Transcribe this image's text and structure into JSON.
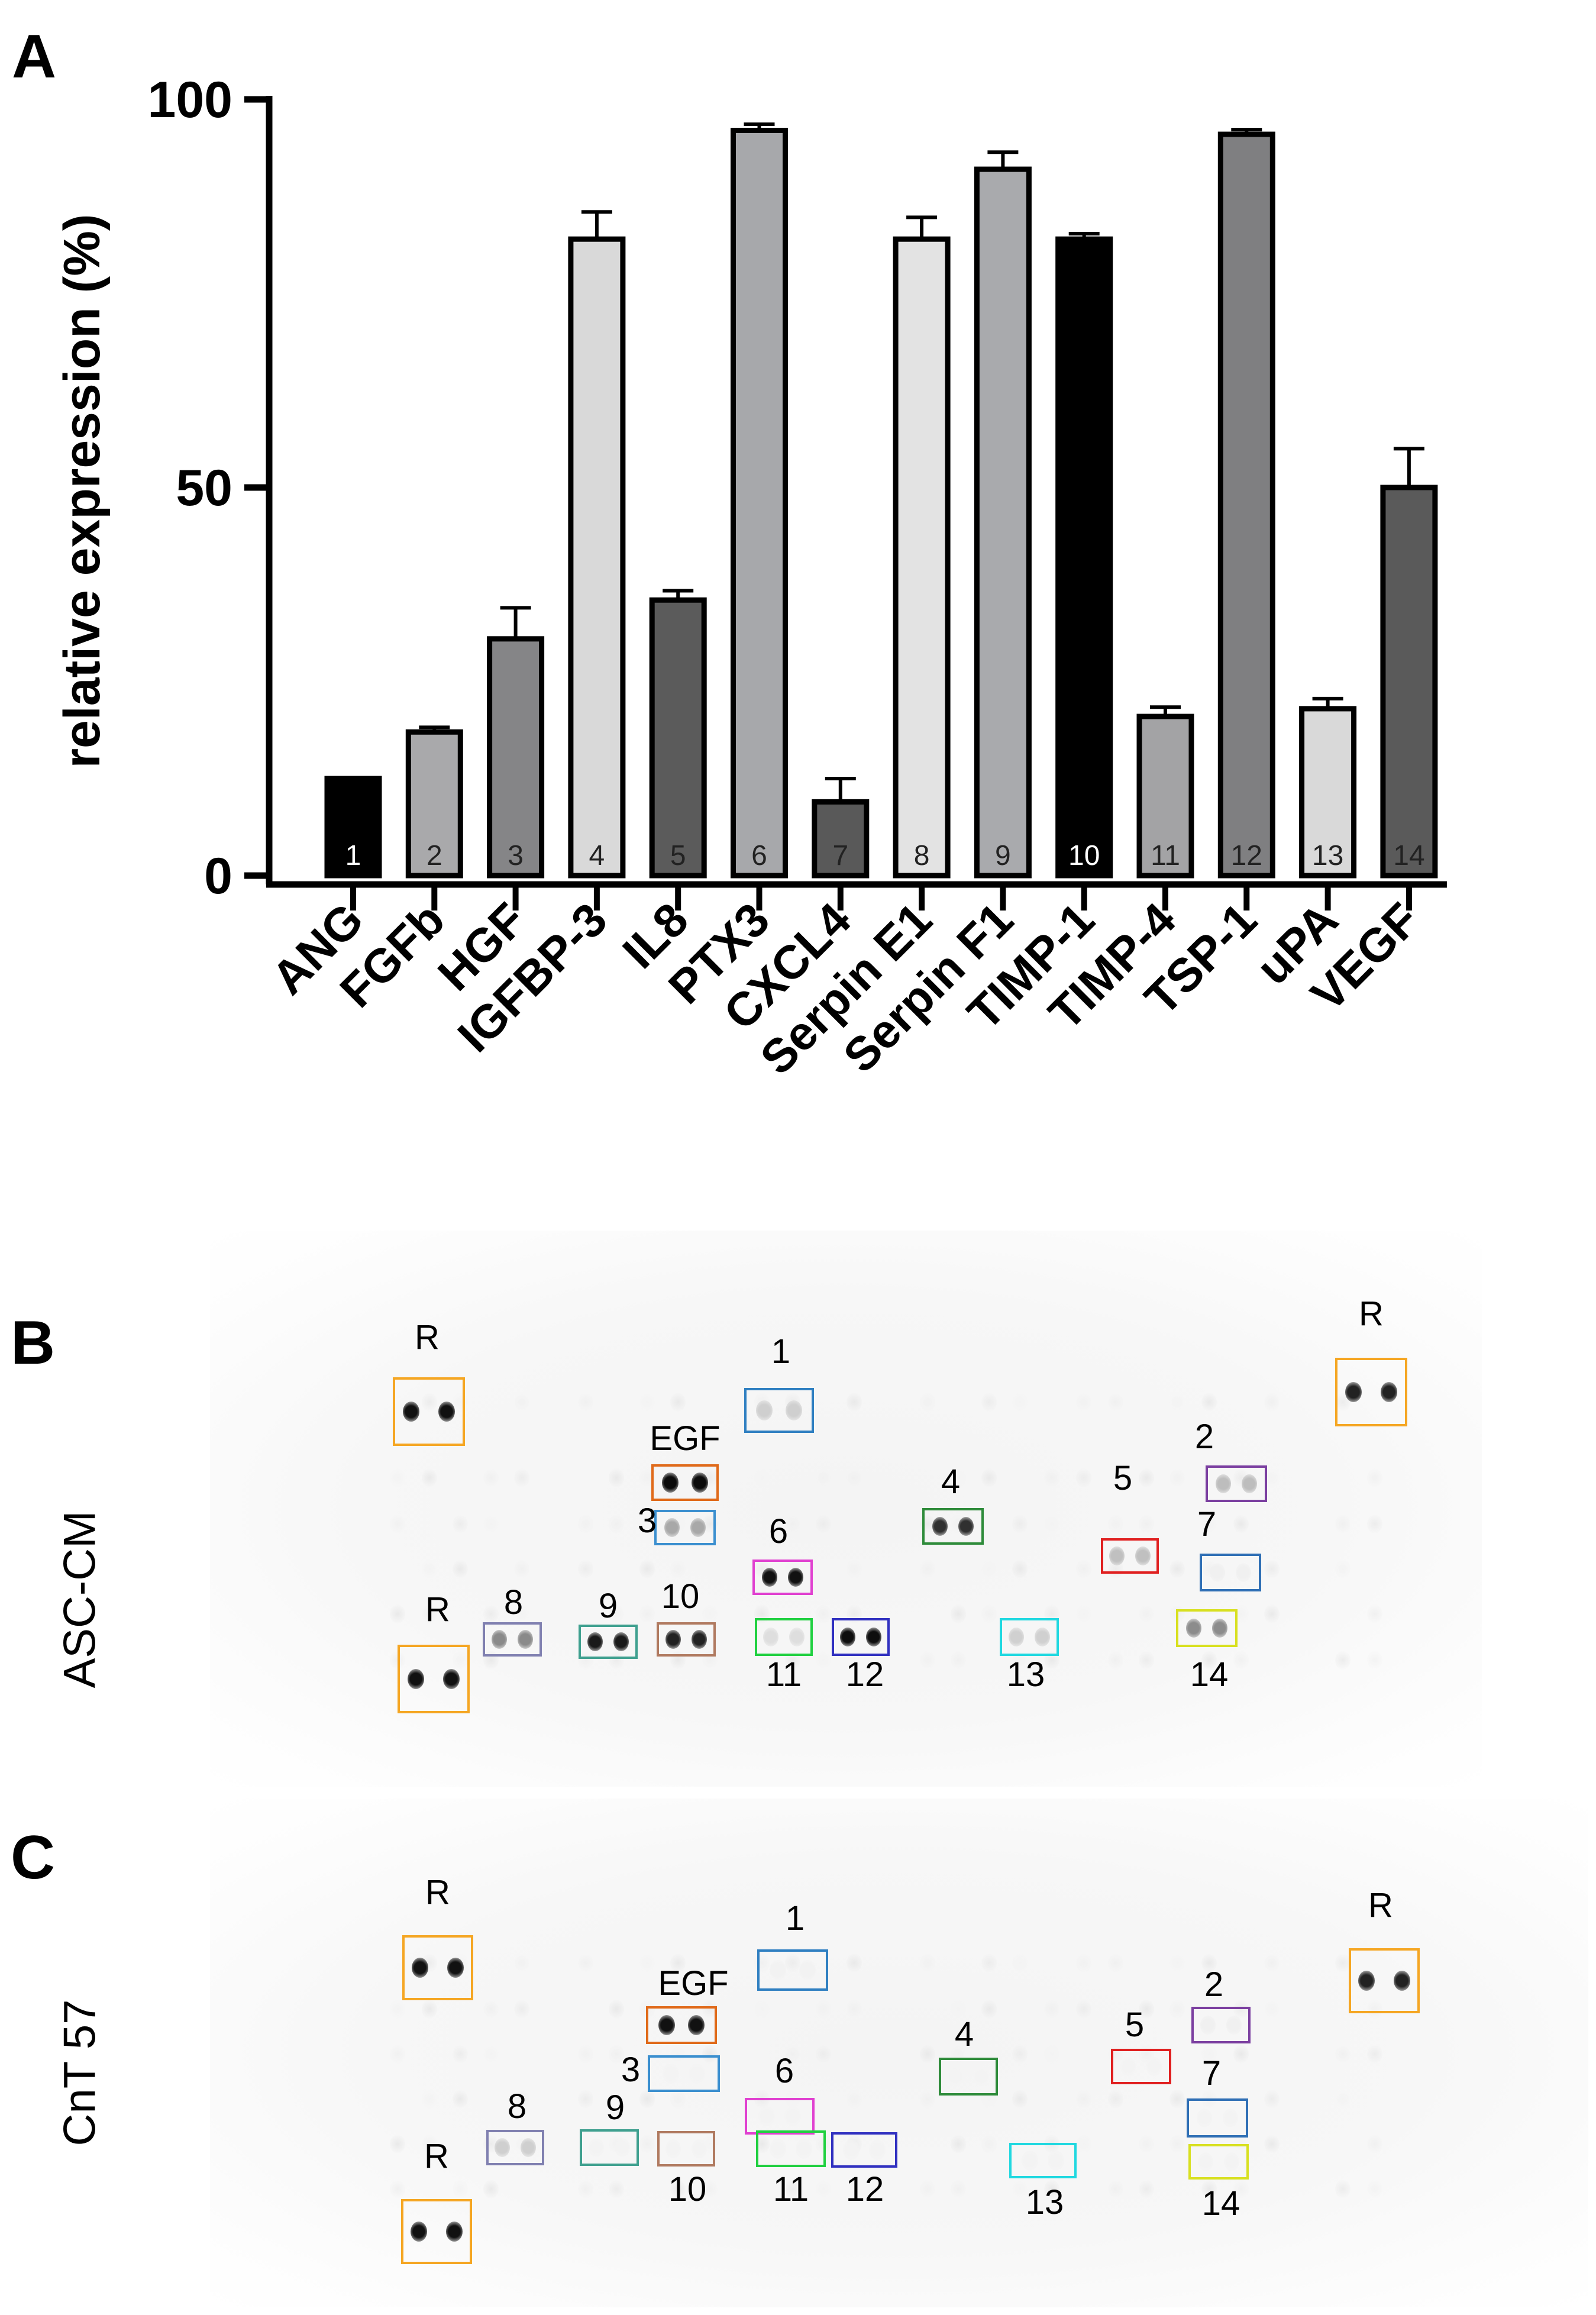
{
  "figure": {
    "panel_letters": {
      "A": "A",
      "B": "B",
      "C": "C"
    }
  },
  "chart_data": {
    "type": "bar",
    "title": "",
    "xlabel": "",
    "ylabel": "relative expression (%)",
    "ylim": [
      0,
      100
    ],
    "yticks": [
      0,
      50,
      100
    ],
    "categories": [
      "ANG",
      "FGFb",
      "HGF",
      "IGFBP-3",
      "IL8",
      "PTX3",
      "CXCL4",
      "Serpin E1",
      "Serpin F1",
      "TIMP-1",
      "TIMP-4",
      "TSP-1",
      "uPA",
      "VEGF"
    ],
    "bar_numbers": [
      "1",
      "2",
      "3",
      "4",
      "5",
      "6",
      "7",
      "8",
      "9",
      "10",
      "11",
      "12",
      "13",
      "14"
    ],
    "values": [
      12.5,
      18.5,
      30.5,
      82,
      35.5,
      96,
      9.5,
      82,
      91,
      82,
      20.5,
      95.5,
      21.5,
      50
    ],
    "error": [
      0,
      0.6,
      4,
      3.5,
      1.2,
      0.8,
      3,
      2.8,
      2.2,
      0.7,
      1.2,
      0.6,
      1.3,
      5
    ],
    "bar_colors": [
      "#000000",
      "#a9a9ab",
      "#858587",
      "#d9d9d9",
      "#5b5b5b",
      "#a7a8ab",
      "#595959",
      "#e3e3e3",
      "#a9aaad",
      "#000000",
      "#a3a3a5",
      "#7f7f81",
      "#d9d9d9",
      "#5a5a5a"
    ],
    "grid": false
  },
  "blots": [
    {
      "panel": "B",
      "side_label": "ASC-CM",
      "boxes": [
        {
          "label": "R",
          "color": "#f5a623"
        },
        {
          "label": "R",
          "color": "#f5a623"
        },
        {
          "label": "R",
          "color": "#f5a623"
        },
        {
          "label": "1",
          "color": "#2f7fc1"
        },
        {
          "label": "2",
          "color": "#7b3fa0"
        },
        {
          "label": "EGF",
          "color": "#e06a1a"
        },
        {
          "label": "3",
          "color": "#3b8fcf"
        },
        {
          "label": "4",
          "color": "#2e8b3a"
        },
        {
          "label": "5",
          "color": "#e02020"
        },
        {
          "label": "6",
          "color": "#e040d0"
        },
        {
          "label": "7",
          "color": "#2f6fb5"
        },
        {
          "label": "8",
          "color": "#8080b0"
        },
        {
          "label": "9",
          "color": "#3fa08f"
        },
        {
          "label": "10",
          "color": "#b07a60"
        },
        {
          "label": "11",
          "color": "#20d040"
        },
        {
          "label": "12",
          "color": "#3030c0"
        },
        {
          "label": "13",
          "color": "#20d8e0"
        },
        {
          "label": "14",
          "color": "#d8e020"
        }
      ]
    },
    {
      "panel": "C",
      "side_label": "CnT 57",
      "boxes": [
        {
          "label": "R",
          "color": "#f5a623"
        },
        {
          "label": "R",
          "color": "#f5a623"
        },
        {
          "label": "R",
          "color": "#f5a623"
        },
        {
          "label": "1",
          "color": "#2f7fc1"
        },
        {
          "label": "2",
          "color": "#7b3fa0"
        },
        {
          "label": "EGF",
          "color": "#e06a1a"
        },
        {
          "label": "3",
          "color": "#3b8fcf"
        },
        {
          "label": "4",
          "color": "#2e8b3a"
        },
        {
          "label": "5",
          "color": "#e02020"
        },
        {
          "label": "6",
          "color": "#e040d0"
        },
        {
          "label": "7",
          "color": "#2f6fb5"
        },
        {
          "label": "8",
          "color": "#8080b0"
        },
        {
          "label": "9",
          "color": "#3fa08f"
        },
        {
          "label": "10",
          "color": "#b07a60"
        },
        {
          "label": "11",
          "color": "#20d040"
        },
        {
          "label": "12",
          "color": "#3030c0"
        },
        {
          "label": "13",
          "color": "#20d8e0"
        },
        {
          "label": "14",
          "color": "#d8e020"
        }
      ]
    }
  ]
}
